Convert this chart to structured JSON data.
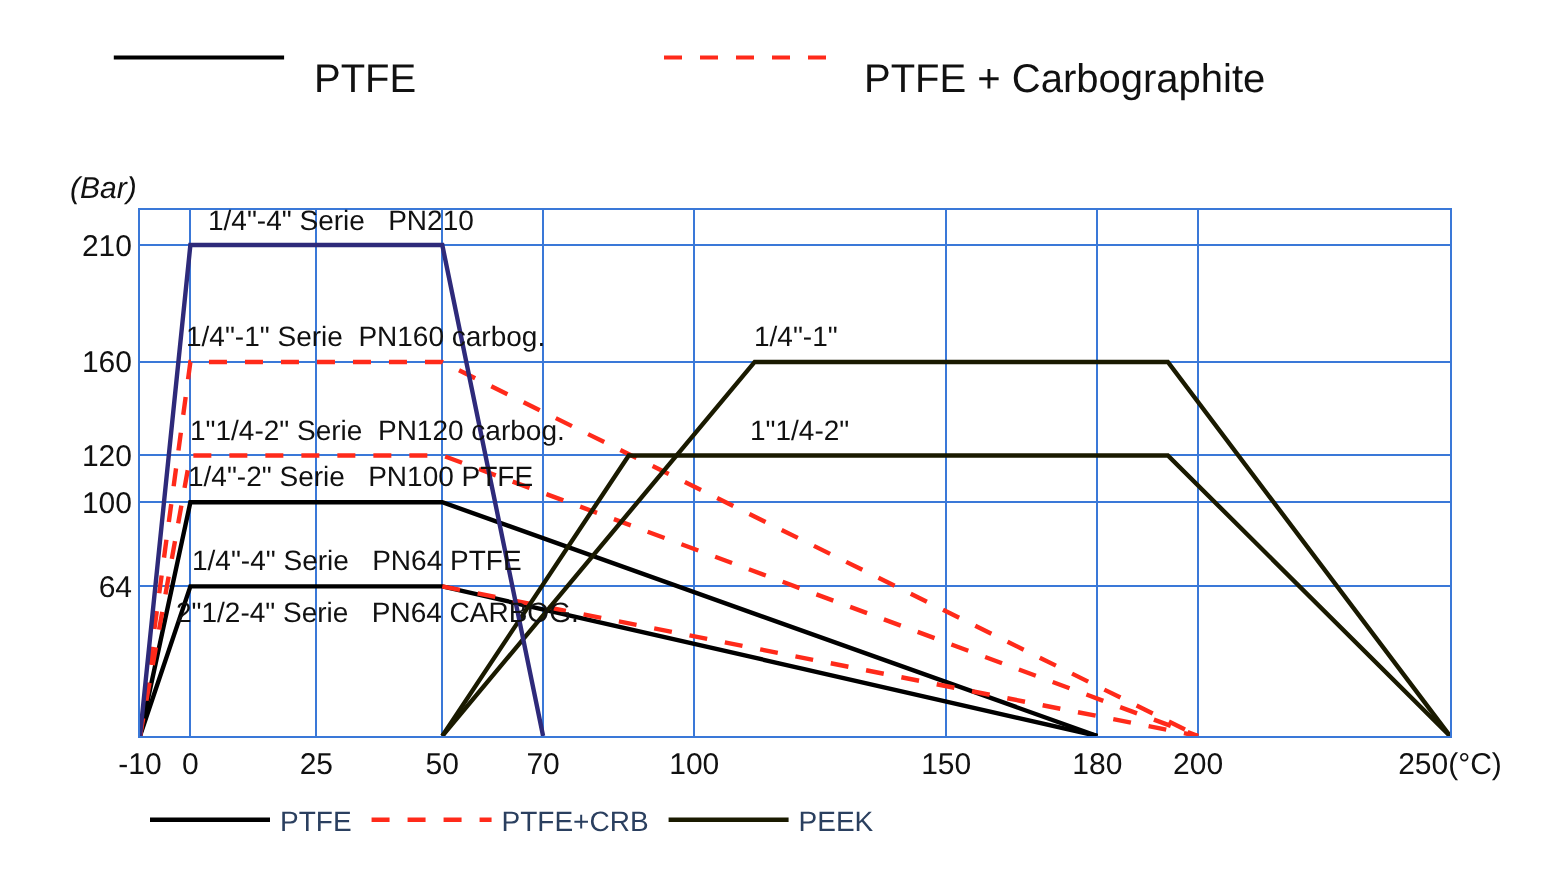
{
  "chart_data": {
    "type": "line",
    "ylabel": "(Bar)",
    "xlim": [
      -10,
      250
    ],
    "ylim": [
      0,
      225
    ],
    "xticks": [
      -10,
      0,
      25,
      50,
      70,
      100,
      150,
      180,
      200,
      {
        "value": 250,
        "label": "250(°C)"
      }
    ],
    "yticks": [
      64,
      100,
      120,
      160,
      210
    ],
    "grid": true,
    "legend": "bottom",
    "marker": "none",
    "series": [
      {
        "name": "PTFE",
        "color": "#000000",
        "line_style": "solid",
        "x": [
          -10,
          0,
          50,
          180
        ],
        "values": [
          0,
          100,
          100,
          0
        ]
      },
      {
        "color": "#000000",
        "line_style": "solid",
        "x": [
          -10,
          0,
          50,
          180
        ],
        "values": [
          0,
          64,
          64,
          0
        ]
      },
      {
        "name": "PTFE+CRB",
        "color": "#ff2a1a",
        "line_style": "dashed",
        "x": [
          -10,
          0,
          50,
          200
        ],
        "values": [
          0,
          160,
          160,
          0
        ]
      },
      {
        "color": "#ff2a1a",
        "line_style": "dashed",
        "x": [
          -10,
          0,
          50,
          200
        ],
        "values": [
          0,
          120,
          120,
          0
        ]
      },
      {
        "color": "#ff2a1a",
        "line_style": "dashed",
        "x": [
          50,
          200
        ],
        "values": [
          64,
          0
        ]
      },
      {
        "name": "PEEK",
        "color": "#1a1a00",
        "line_style": "solid",
        "x": [
          50,
          112,
          194,
          250
        ],
        "values": [
          0,
          160,
          160,
          0
        ]
      },
      {
        "color": "#1a1a00",
        "line_style": "solid",
        "x": [
          50,
          87,
          194,
          250
        ],
        "values": [
          0,
          120,
          120,
          0
        ]
      },
      {
        "color": "#2e2a7a",
        "line_style": "solid",
        "x": [
          -10,
          0,
          50,
          70
        ],
        "values": [
          0,
          210,
          210,
          0
        ]
      }
    ],
    "annotations": [
      "PTFE",
      "PTFE + Carbographite",
      {
        "text": "1/4\"-4\" Serie   PN210",
        "x": 30,
        "y": 210
      },
      {
        "text": "1/4\"-1\" Serie  PN160 carbog.",
        "x": 35,
        "y": 160
      },
      {
        "text": "1\"1/4-2\" Serie  PN120 carbog.",
        "x": 37,
        "y": 120
      },
      {
        "text": "1/4\"-2\" Serie   PN100 PTFE",
        "x": 34,
        "y": 100
      },
      {
        "text": "1/4\"-4\" Serie   PN64 PTFE",
        "x": 33,
        "y": 64
      },
      {
        "text": "2\"1/2-4\" Serie   PN64 CARBOG.",
        "x": 37,
        "y": 64
      },
      {
        "text": "1/4\"-1\"",
        "x": 120,
        "y": 160
      },
      {
        "text": "1\"1/4-2\"",
        "x": 121,
        "y": 120
      }
    ]
  }
}
